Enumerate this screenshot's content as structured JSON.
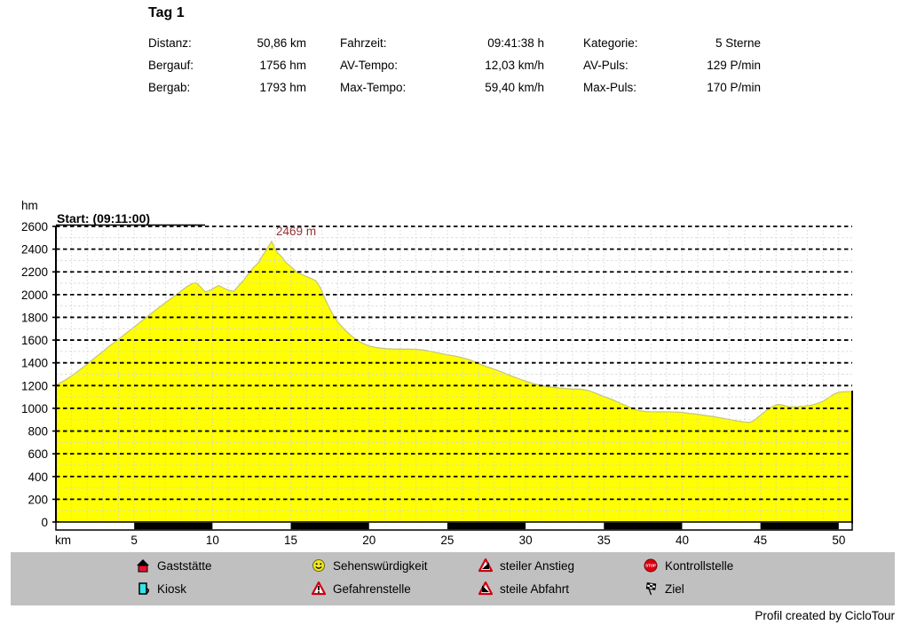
{
  "title": "Tag 1",
  "stats": {
    "rows": [
      [
        {
          "label": "Distanz:",
          "value": "50,86 km"
        },
        {
          "label": "Fahrzeit:",
          "value": "09:41:38 h"
        },
        {
          "label": "Kategorie:",
          "value": "5 Sterne"
        }
      ],
      [
        {
          "label": "Bergauf:",
          "value": "1756 hm"
        },
        {
          "label": "AV-Tempo:",
          "value": "12,03 km/h"
        },
        {
          "label": "AV-Puls:",
          "value": "129 P/min"
        }
      ],
      [
        {
          "label": "Bergab:",
          "value": "1793 hm"
        },
        {
          "label": "Max-Tempo:",
          "value": "59,40 km/h"
        },
        {
          "label": "Max-Puls:",
          "value": "170 P/min"
        }
      ]
    ]
  },
  "chart_data": {
    "type": "area",
    "title": "",
    "xlabel": "km",
    "ylabel": "hm",
    "xlim": [
      0,
      50.86
    ],
    "ylim": [
      0,
      2600
    ],
    "x_ticks": [
      5,
      10,
      15,
      20,
      25,
      30,
      35,
      40,
      45,
      50
    ],
    "y_tick_step": 200,
    "grid": "dashed horizontal major, faint minor grid",
    "start_annotation": "Start: (09:11:00)",
    "peak_annotation": {
      "text": "2469 m",
      "km": 13.78,
      "hm": 2469
    },
    "colors": {
      "fill": "#ffff00",
      "edge": "#c8c878",
      "annotation": "#993333",
      "grid": "#000000"
    },
    "series": [
      {
        "name": "Höhenprofil",
        "points": [
          [
            0,
            1205
          ],
          [
            0.5,
            1240
          ],
          [
            1,
            1285
          ],
          [
            1.5,
            1335
          ],
          [
            2,
            1390
          ],
          [
            2.5,
            1445
          ],
          [
            3,
            1500
          ],
          [
            3.5,
            1555
          ],
          [
            4,
            1608
          ],
          [
            4.5,
            1662
          ],
          [
            5,
            1716
          ],
          [
            5.5,
            1770
          ],
          [
            6,
            1824
          ],
          [
            6.5,
            1878
          ],
          [
            7,
            1930
          ],
          [
            7.5,
            1980
          ],
          [
            8,
            2032
          ],
          [
            8.4,
            2072
          ],
          [
            8.7,
            2096
          ],
          [
            8.95,
            2106
          ],
          [
            9.2,
            2072
          ],
          [
            9.55,
            2022
          ],
          [
            9.9,
            2042
          ],
          [
            10.15,
            2062
          ],
          [
            10.4,
            2080
          ],
          [
            10.7,
            2058
          ],
          [
            11,
            2040
          ],
          [
            11.35,
            2028
          ],
          [
            11.7,
            2082
          ],
          [
            12,
            2128
          ],
          [
            12.3,
            2182
          ],
          [
            12.6,
            2235
          ],
          [
            12.9,
            2275
          ],
          [
            13.2,
            2345
          ],
          [
            13.45,
            2392
          ],
          [
            13.65,
            2440
          ],
          [
            13.78,
            2469
          ],
          [
            13.95,
            2415
          ],
          [
            14.15,
            2368
          ],
          [
            14.4,
            2335
          ],
          [
            14.7,
            2282
          ],
          [
            15,
            2248
          ],
          [
            15.4,
            2195
          ],
          [
            15.8,
            2172
          ],
          [
            16.2,
            2148
          ],
          [
            16.6,
            2122
          ],
          [
            16.9,
            2058
          ],
          [
            17.2,
            1958
          ],
          [
            17.6,
            1848
          ],
          [
            18,
            1758
          ],
          [
            18.5,
            1683
          ],
          [
            19,
            1623
          ],
          [
            19.5,
            1578
          ],
          [
            20,
            1548
          ],
          [
            20.5,
            1533
          ],
          [
            21,
            1525
          ],
          [
            21.5,
            1521
          ],
          [
            22,
            1520
          ],
          [
            22.5,
            1520
          ],
          [
            23,
            1519
          ],
          [
            23.5,
            1512
          ],
          [
            24,
            1499
          ],
          [
            24.5,
            1484
          ],
          [
            25,
            1470
          ],
          [
            25.5,
            1459
          ],
          [
            26,
            1444
          ],
          [
            26.5,
            1423
          ],
          [
            27,
            1394
          ],
          [
            27.5,
            1366
          ],
          [
            28,
            1344
          ],
          [
            28.5,
            1318
          ],
          [
            29,
            1289
          ],
          [
            29.5,
            1263
          ],
          [
            30,
            1238
          ],
          [
            30.5,
            1218
          ],
          [
            31,
            1199
          ],
          [
            31.5,
            1188
          ],
          [
            32,
            1180
          ],
          [
            32.5,
            1174
          ],
          [
            33,
            1170
          ],
          [
            33.5,
            1169
          ],
          [
            34,
            1158
          ],
          [
            34.5,
            1131
          ],
          [
            35,
            1104
          ],
          [
            35.5,
            1078
          ],
          [
            36,
            1048
          ],
          [
            36.5,
            1018
          ],
          [
            37,
            989
          ],
          [
            37.3,
            978
          ],
          [
            37.7,
            971
          ],
          [
            38,
            969
          ],
          [
            38.5,
            969
          ],
          [
            39,
            969
          ],
          [
            39.5,
            967
          ],
          [
            40,
            964
          ],
          [
            40.5,
            954
          ],
          [
            41,
            947
          ],
          [
            41.5,
            937
          ],
          [
            42,
            927
          ],
          [
            42.5,
            914
          ],
          [
            43,
            902
          ],
          [
            43.5,
            889
          ],
          [
            44,
            879
          ],
          [
            44.3,
            876
          ],
          [
            44.6,
            893
          ],
          [
            44.9,
            928
          ],
          [
            45.2,
            963
          ],
          [
            45.5,
            993
          ],
          [
            45.8,
            1018
          ],
          [
            46.1,
            1034
          ],
          [
            46.4,
            1029
          ],
          [
            46.7,
            1017
          ],
          [
            47,
            1013
          ],
          [
            47.4,
            1015
          ],
          [
            47.8,
            1019
          ],
          [
            48.2,
            1027
          ],
          [
            48.6,
            1041
          ],
          [
            49,
            1061
          ],
          [
            49.3,
            1089
          ],
          [
            49.6,
            1117
          ],
          [
            49.9,
            1137
          ],
          [
            50.2,
            1145
          ],
          [
            50.5,
            1147
          ],
          [
            50.86,
            1147
          ]
        ]
      }
    ],
    "km_band_bar": {
      "white_bands": "0-5,10-15,20-25,30-35,40-45,50-50.86",
      "black_bands": "5-10,15-20,25-30,35-40,45-50"
    }
  },
  "legend": {
    "items": [
      {
        "icon": "gaststaette",
        "label": "Gaststätte"
      },
      {
        "icon": "kiosk",
        "label": "Kiosk"
      },
      {
        "icon": "sehenswuerdigkeit",
        "label": "Sehenswürdigkeit"
      },
      {
        "icon": "gefahrenstelle",
        "label": "Gefahrenstelle"
      },
      {
        "icon": "steiler-anstieg",
        "label": "steiler Anstieg"
      },
      {
        "icon": "steile-abfahrt",
        "label": "steile Abfahrt"
      },
      {
        "icon": "kontrollstelle",
        "label": "Kontrollstelle"
      },
      {
        "icon": "ziel",
        "label": "Ziel"
      }
    ]
  },
  "footer": "Profil created by CicloTour"
}
